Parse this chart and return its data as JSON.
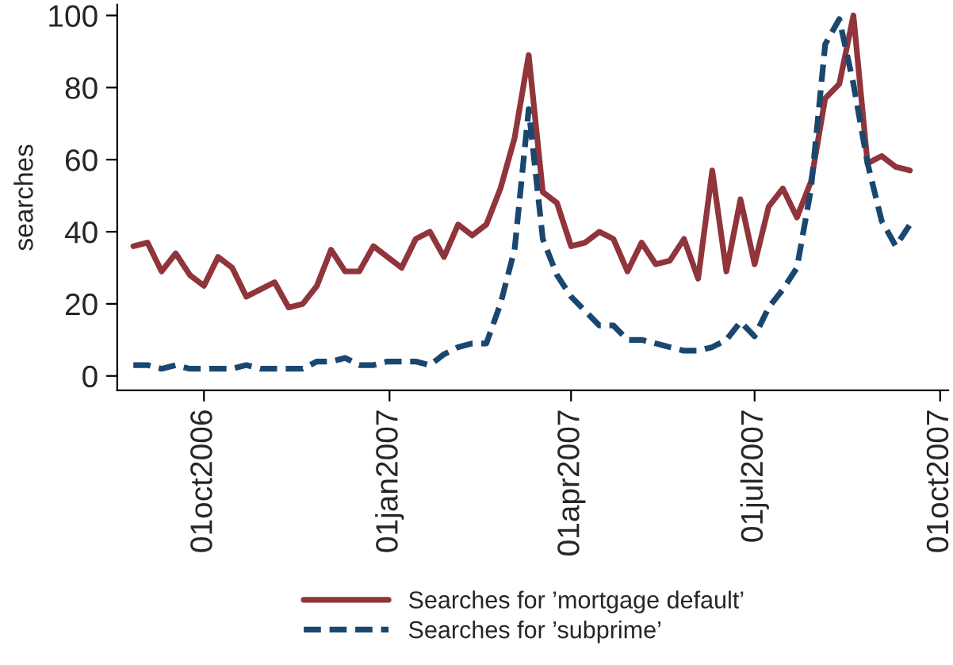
{
  "chart_data": {
    "type": "line",
    "ylabel": "searches",
    "x": [
      "2006-08-27",
      "2006-09-03",
      "2006-09-10",
      "2006-09-17",
      "2006-09-24",
      "2006-10-01",
      "2006-10-08",
      "2006-10-15",
      "2006-10-22",
      "2006-10-29",
      "2006-11-05",
      "2006-11-12",
      "2006-11-19",
      "2006-11-26",
      "2006-12-03",
      "2006-12-10",
      "2006-12-17",
      "2006-12-24",
      "2006-12-31",
      "2007-01-07",
      "2007-01-14",
      "2007-01-21",
      "2007-01-28",
      "2007-02-04",
      "2007-02-11",
      "2007-02-18",
      "2007-02-25",
      "2007-03-04",
      "2007-03-11",
      "2007-03-18",
      "2007-03-25",
      "2007-04-01",
      "2007-04-08",
      "2007-04-15",
      "2007-04-22",
      "2007-04-29",
      "2007-05-06",
      "2007-05-13",
      "2007-05-20",
      "2007-05-27",
      "2007-06-03",
      "2007-06-10",
      "2007-06-17",
      "2007-06-24",
      "2007-07-01",
      "2007-07-08",
      "2007-07-15",
      "2007-07-22",
      "2007-07-29",
      "2007-08-05",
      "2007-08-12",
      "2007-08-19",
      "2007-08-26",
      "2007-09-02",
      "2007-09-09",
      "2007-09-16"
    ],
    "series": [
      {
        "name": "Searches for ’mortgage default’",
        "color": "#90353b",
        "line_style": "solid",
        "values": [
          36,
          37,
          29,
          34,
          28,
          25,
          33,
          30,
          22,
          24,
          26,
          19,
          20,
          25,
          35,
          29,
          29,
          36,
          33,
          30,
          38,
          40,
          33,
          42,
          39,
          42,
          52,
          66,
          89,
          51,
          48,
          36,
          37,
          40,
          38,
          29,
          37,
          31,
          32,
          38,
          27,
          57,
          29,
          49,
          31,
          47,
          52,
          44,
          54,
          77,
          81,
          100,
          59,
          61,
          58,
          57
        ]
      },
      {
        "name": "Searches for ’subprime’",
        "color": "#1a476f",
        "line_style": "dashed",
        "values": [
          3,
          3,
          2,
          3,
          2,
          2,
          2,
          2,
          3,
          2,
          2,
          2,
          2,
          4,
          4,
          5,
          3,
          3,
          4,
          4,
          4,
          3,
          6,
          8,
          9,
          9,
          20,
          35,
          74,
          38,
          28,
          22,
          18,
          14,
          14,
          10,
          10,
          9,
          8,
          7,
          7,
          8,
          10,
          15,
          11,
          19,
          24,
          30,
          52,
          92,
          99,
          81,
          59,
          43,
          36,
          42
        ]
      }
    ],
    "ylim": [
      -4,
      103
    ],
    "yticks": [
      0,
      20,
      40,
      60,
      80,
      100
    ],
    "xlim": [
      "2006-08-19",
      "2007-10-05"
    ],
    "xticks": [
      {
        "value": "2006-10-01",
        "label": "01oct2006"
      },
      {
        "value": "2007-01-01",
        "label": "01jan2007"
      },
      {
        "value": "2007-04-01",
        "label": "01apr2007"
      },
      {
        "value": "2007-07-01",
        "label": "01jul2007"
      },
      {
        "value": "2007-10-01",
        "label": "01oct2007"
      }
    ],
    "grid": false,
    "legend": "bottom"
  }
}
